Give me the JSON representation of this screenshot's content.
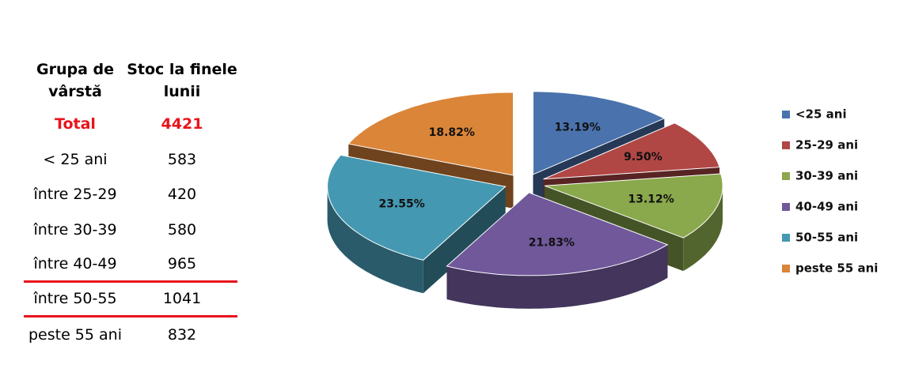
{
  "table": {
    "header": [
      "Grupa de vârstă",
      "Stoc la finele lunii"
    ],
    "rows": [
      [
        "Total",
        4421
      ],
      [
        "< 25 ani",
        583
      ],
      [
        "între 25-29",
        420
      ],
      [
        "între 30-39",
        580
      ],
      [
        "între 40-49",
        965
      ],
      [
        "între 50-55",
        1041
      ],
      [
        "peste 55 ani",
        832
      ]
    ]
  },
  "chart_data": {
    "type": "pie",
    "categories": [
      "<25 ani",
      "25-29 ani",
      "30-39 ani",
      "40-49 ani",
      "50-55 ani",
      "peste 55 ani"
    ],
    "values": [
      13.19,
      9.5,
      13.12,
      21.83,
      23.55,
      18.82
    ],
    "value_labels": [
      "13.19%",
      "9.50%",
      "13.12%",
      "21.83%",
      "23.55%",
      "18.82%"
    ],
    "colors": [
      "#4a72ad",
      "#b04745",
      "#8aa84c",
      "#70589a",
      "#4598b1",
      "#db8539"
    ],
    "legend": "right"
  }
}
